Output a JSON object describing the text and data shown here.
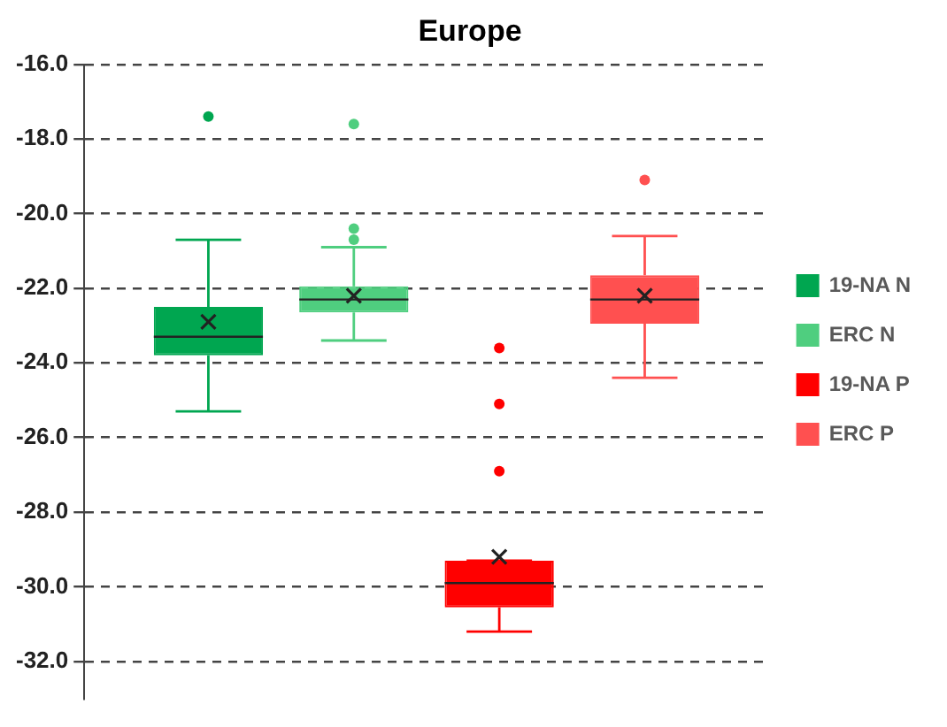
{
  "chart_data": {
    "type": "box",
    "title": "Europe",
    "categories": [
      null
    ],
    "series": [
      {
        "name": "19-NA N",
        "color": "#00a650",
        "boxes": [
          {
            "low": -25.3,
            "q1": -23.8,
            "median": -23.3,
            "q3": -22.5,
            "high": -20.7,
            "mean": -22.9,
            "outliers": [
              -17.4
            ]
          }
        ]
      },
      {
        "name": "ERC N",
        "color": "#4fce7f",
        "boxes": [
          {
            "low": -23.4,
            "q1": -22.65,
            "median": -22.3,
            "q3": -21.95,
            "high": -20.9,
            "mean": -22.2,
            "outliers": [
              -17.6,
              -20.4,
              -20.7
            ]
          }
        ]
      },
      {
        "name": "19-NA P",
        "color": "#ff0000",
        "boxes": [
          {
            "low": -31.2,
            "q1": -30.55,
            "median": -29.9,
            "q3": -29.3,
            "high": -29.3,
            "mean": -29.2,
            "outliers": [
              -23.6,
              -25.1,
              -26.9
            ]
          }
        ]
      },
      {
        "name": "ERC P",
        "color": "#ff5050",
        "boxes": [
          {
            "low": -24.4,
            "q1": -22.95,
            "median": -22.3,
            "q3": -21.65,
            "high": -20.6,
            "mean": -22.2,
            "outliers": [
              -19.1
            ]
          }
        ]
      }
    ],
    "ylim": [
      -33,
      -16
    ],
    "yticks": [
      {
        "value": -16,
        "label": "-16.0"
      },
      {
        "value": -18,
        "label": "-18.0"
      },
      {
        "value": -20,
        "label": "-20.0"
      },
      {
        "value": -22,
        "label": "-22.0"
      },
      {
        "value": -24,
        "label": "-24.0"
      },
      {
        "value": -26,
        "label": "-26.0"
      },
      {
        "value": -28,
        "label": "-28.0"
      },
      {
        "value": -30,
        "label": "-30.0"
      },
      {
        "value": -32,
        "label": "-32.0"
      }
    ],
    "grid": "y",
    "legend": "right",
    "tick_labels": "y"
  }
}
